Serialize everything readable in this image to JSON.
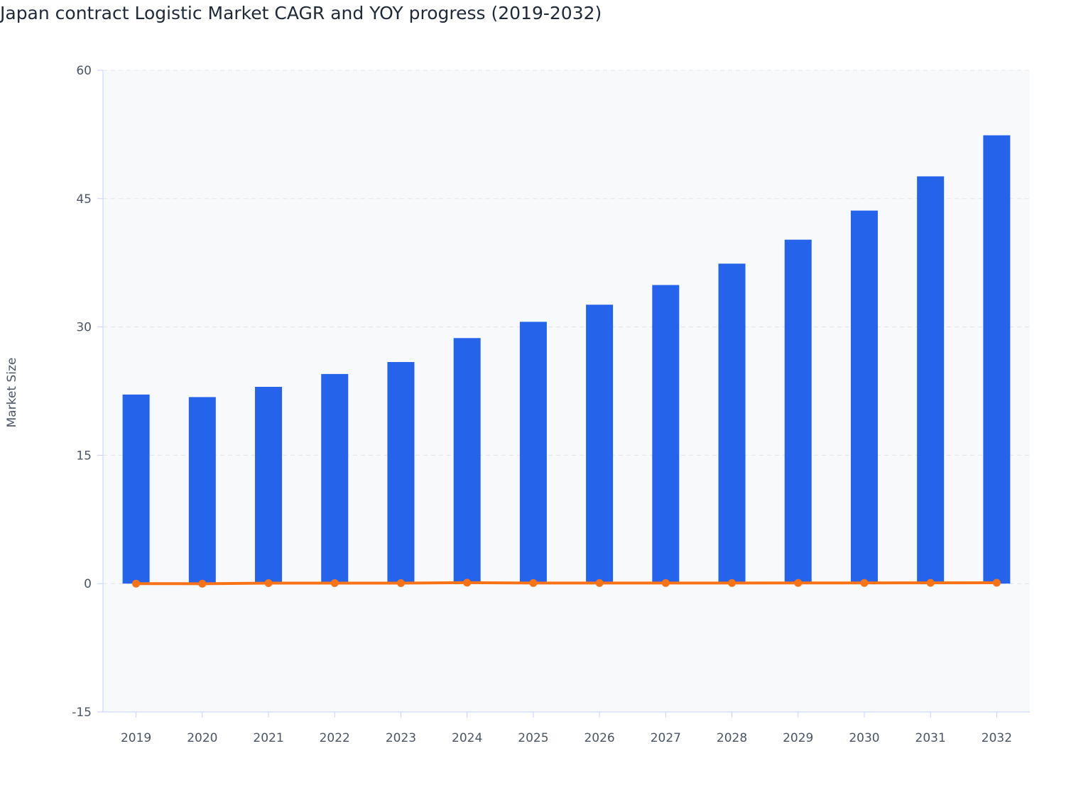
{
  "chart_data": {
    "type": "bar",
    "title": "Japan contract Logistic Market CAGR and YOY progress (2019-2032)",
    "xlabel": "",
    "ylabel": "Market Size",
    "ylim": [
      -15,
      60
    ],
    "yticks": [
      -15,
      0,
      15,
      30,
      45,
      60
    ],
    "grid": true,
    "categories": [
      "2019",
      "2020",
      "2021",
      "2022",
      "2023",
      "2024",
      "2025",
      "2026",
      "2027",
      "2028",
      "2029",
      "2030",
      "2031",
      "2032"
    ],
    "series": [
      {
        "type": "bar",
        "color": "#2563eb",
        "values": [
          22.1,
          21.8,
          23.0,
          24.5,
          25.9,
          28.7,
          30.6,
          32.6,
          34.9,
          37.4,
          40.2,
          43.6,
          47.6,
          52.4
        ]
      },
      {
        "type": "line",
        "color": "#f97316",
        "values": [
          0,
          -0.01,
          0.06,
          0.06,
          0.06,
          0.11,
          0.07,
          0.07,
          0.07,
          0.07,
          0.08,
          0.08,
          0.09,
          0.1
        ]
      }
    ]
  }
}
